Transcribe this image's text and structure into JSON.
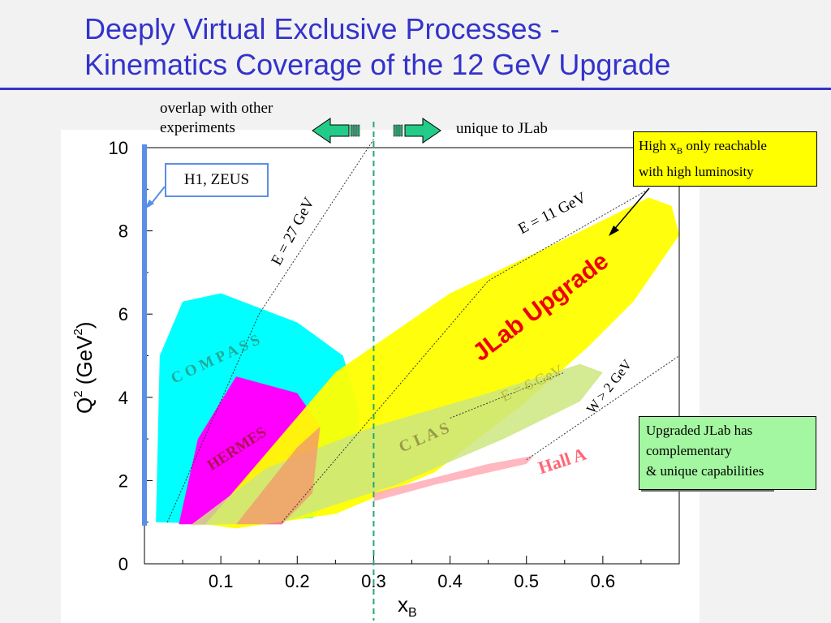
{
  "slide": {
    "title_line1": "Deeply Virtual Exclusive Processes -",
    "title_line2": "Kinematics Coverage of the 12 GeV Upgrade"
  },
  "notes": {
    "overlap_line1": "overlap with other",
    "overlap_line2": "experiments",
    "unique": "unique to JLab",
    "h1zeus": "H1, ZEUS",
    "highx_line1_prefix": "High x",
    "highx_line1_sub": "B",
    "highx_line1_suffix": " only reachable",
    "highx_line2": "with high luminosity",
    "upgraded_line1": "Upgraded JLab has",
    "upgraded_line2": "complementary",
    "upgraded_line3": "& unique capabilities"
  },
  "colors": {
    "title": "#3333cc",
    "compass": "#00ffff",
    "hermes": "#ff00ff",
    "hermes_overlap": "#f39a6c",
    "jlab_upgrade": "#ffff00",
    "clas": "#cce680",
    "hall_a": "#ffb0b8",
    "h1_bar": "#5b8ee6",
    "divider": "#22aa77",
    "arrow": "#22cc88"
  },
  "chart_data": {
    "type": "area",
    "xlabel": "x",
    "xlabel_sub": "B",
    "ylabel": "Q",
    "ylabel_sup": "2",
    "ylabel_unit": "(GeV",
    "ylabel_unit_sup": "2",
    "ylabel_unit_close": ")",
    "xlim": [
      0,
      0.7
    ],
    "ylim": [
      0,
      10
    ],
    "xticks": [
      "0.1",
      "0.2",
      "0.3",
      "0.4",
      "0.5",
      "0.6"
    ],
    "yticks": [
      "0",
      "2",
      "4",
      "6",
      "8",
      "10"
    ],
    "grid": false,
    "divider_x": 0.3,
    "regions": [
      {
        "name": "COMPASS",
        "label": "C O M P A S S",
        "points": [
          [
            0.015,
            1.0
          ],
          [
            0.02,
            5.0
          ],
          [
            0.05,
            6.3
          ],
          [
            0.1,
            6.5
          ],
          [
            0.2,
            5.8
          ],
          [
            0.26,
            5.0
          ],
          [
            0.28,
            3.7
          ],
          [
            0.28,
            2.1
          ],
          [
            0.22,
            1.1
          ],
          [
            0.1,
            0.95
          ]
        ]
      },
      {
        "name": "HERMES",
        "label": "HERMES",
        "points": [
          [
            0.045,
            0.95
          ],
          [
            0.07,
            3.0
          ],
          [
            0.12,
            4.5
          ],
          [
            0.2,
            4.1
          ],
          [
            0.23,
            3.3
          ],
          [
            0.22,
            1.7
          ],
          [
            0.18,
            0.95
          ]
        ]
      },
      {
        "name": "JLab Upgrade",
        "label": "JLab Upgrade",
        "points": [
          [
            0.08,
            0.95
          ],
          [
            0.25,
            4.6
          ],
          [
            0.4,
            6.5
          ],
          [
            0.55,
            7.8
          ],
          [
            0.66,
            8.8
          ],
          [
            0.69,
            8.6
          ],
          [
            0.7,
            7.9
          ],
          [
            0.64,
            6.3
          ],
          [
            0.58,
            5.2
          ],
          [
            0.5,
            3.9
          ],
          [
            0.38,
            2.2
          ],
          [
            0.25,
            1.2
          ],
          [
            0.12,
            0.85
          ]
        ]
      },
      {
        "name": "CLAS",
        "label": "C     L     A     S",
        "points": [
          [
            0.06,
            0.92
          ],
          [
            0.16,
            2.3
          ],
          [
            0.3,
            3.3
          ],
          [
            0.45,
            4.1
          ],
          [
            0.57,
            4.8
          ],
          [
            0.6,
            4.6
          ],
          [
            0.57,
            3.9
          ],
          [
            0.47,
            3.0
          ],
          [
            0.33,
            1.9
          ],
          [
            0.18,
            1.0
          ]
        ]
      },
      {
        "name": "Hall A",
        "label": "Hall A",
        "points": [
          [
            0.3,
            1.7
          ],
          [
            0.45,
            2.4
          ],
          [
            0.51,
            2.6
          ],
          [
            0.5,
            2.4
          ],
          [
            0.38,
            1.9
          ],
          [
            0.3,
            1.5
          ]
        ]
      }
    ],
    "lines": [
      {
        "name": "E = 27 GeV",
        "points": [
          [
            0.03,
            1.0
          ],
          [
            0.15,
            6.0
          ],
          [
            0.3,
            10.2
          ]
        ]
      },
      {
        "name": "E = 11 GeV",
        "points": [
          [
            0.18,
            1.0
          ],
          [
            0.45,
            6.8
          ],
          [
            0.66,
            9.0
          ]
        ]
      },
      {
        "name": "E = 6 GeV",
        "points": [
          [
            0.4,
            3.5
          ],
          [
            0.55,
            4.6
          ]
        ]
      },
      {
        "name": "W > 2 GeV",
        "points": [
          [
            0.5,
            2.5
          ],
          [
            0.7,
            5.0
          ]
        ]
      }
    ],
    "annotations": [
      "E = 27 GeV",
      "E = 11 GeV",
      "E = 6 GeV",
      "W > 2 GeV",
      "JLab Upgrade",
      "Hall A",
      "HERMES",
      "C O M P A S S",
      "C     L     A     S"
    ]
  }
}
